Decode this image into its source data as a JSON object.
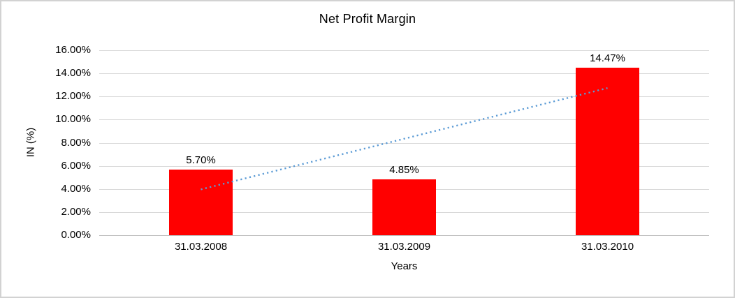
{
  "chart_data": {
    "type": "bar",
    "title": "Net Profit Margin",
    "xlabel": "Years",
    "ylabel": "IN (%)",
    "categories": [
      "31.03.2008",
      "31.03.2009",
      "31.03.2010"
    ],
    "values": [
      5.7,
      4.85,
      14.47
    ],
    "data_labels": [
      "5.70%",
      "4.85%",
      "14.47%"
    ],
    "ylim": [
      0,
      16
    ],
    "ytick_step": 2,
    "ytick_labels": [
      "0.00%",
      "2.00%",
      "4.00%",
      "6.00%",
      "8.00%",
      "10.00%",
      "12.00%",
      "14.00%",
      "16.00%"
    ],
    "grid": true,
    "legend": "none",
    "bar_color": "#ff0000",
    "gridline_color": "#d9d9d9",
    "axis_line_color": "#bfbfbf",
    "text_color": "#000000",
    "trendline": {
      "type": "linear",
      "style": "dotted",
      "color": "#5b9bd5",
      "start_value": 3.96,
      "end_value": 12.73
    }
  }
}
